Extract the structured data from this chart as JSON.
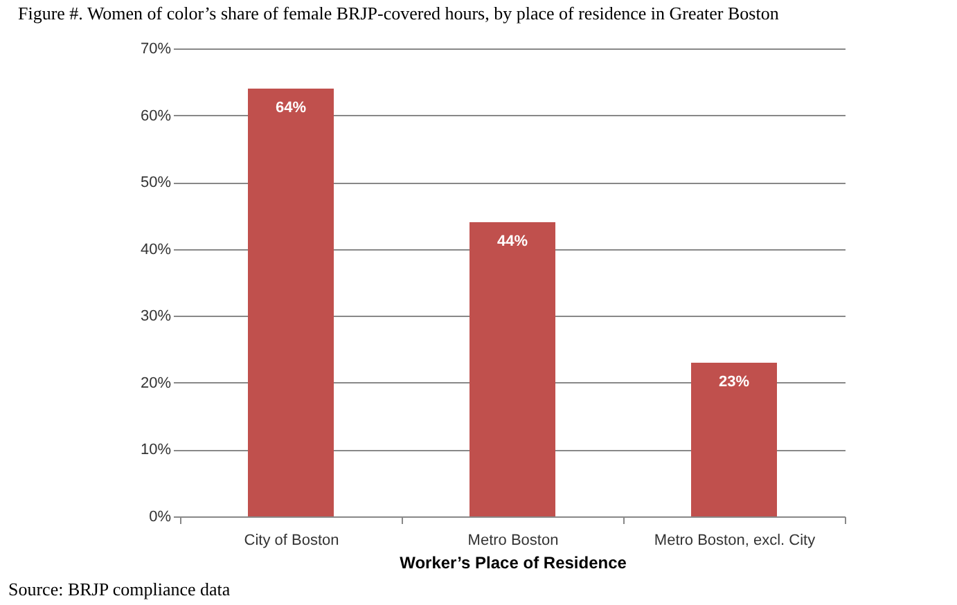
{
  "chart_data": {
    "type": "bar",
    "title": "Figure #. Women of color’s share of female BRJP-covered hours, by place of residence in Greater Boston",
    "categories": [
      "City of Boston",
      "Metro Boston",
      "Metro Boston, excl. City"
    ],
    "values": [
      64,
      44,
      23
    ],
    "color": "#c0504d",
    "ylim": [
      0,
      70
    ],
    "yticks": [
      {
        "value": 0,
        "label": "0%"
      },
      {
        "value": 10,
        "label": "10%"
      },
      {
        "value": 20,
        "label": "20%"
      },
      {
        "value": 30,
        "label": "30%"
      },
      {
        "value": 40,
        "label": "40%"
      },
      {
        "value": 50,
        "label": "50%"
      },
      {
        "value": 60,
        "label": "60%"
      },
      {
        "value": 70,
        "label": "70%"
      }
    ],
    "value_labels": [
      "64%",
      "44%",
      "23%"
    ],
    "xlabel": "Worker’s Place of Residence",
    "grid": "y",
    "annotations": [
      "Source: BRJP compliance data"
    ]
  }
}
